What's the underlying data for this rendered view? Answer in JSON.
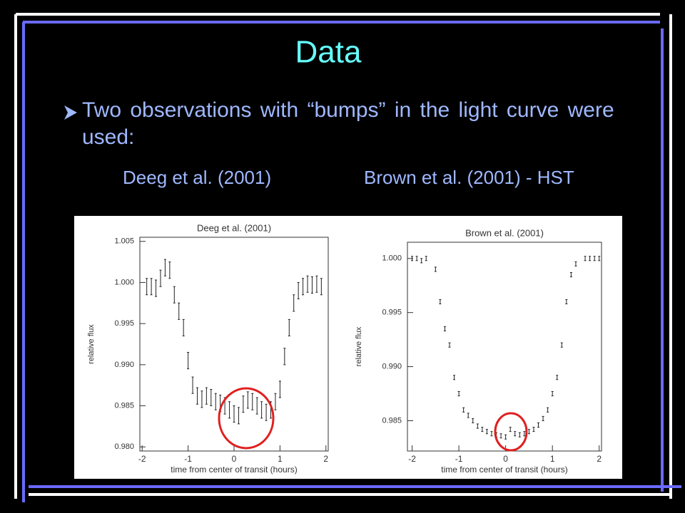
{
  "title": "Data",
  "bullet": "Two observations with “bumps” in the light curve were used:",
  "captions": [
    "Deeg et al. (2001)",
    "Brown et al. (2001) - HST"
  ],
  "chart_data": [
    {
      "type": "scatter",
      "title": "Deeg et al. (2001)",
      "x_label": "time from center of transit (hours)",
      "y_label": "relative flux",
      "xlim": [
        -2.05,
        2.05
      ],
      "ylim": [
        0.9795,
        1.0055
      ],
      "xticks": [
        -2,
        -1,
        0,
        1,
        2
      ],
      "yticks": [
        {
          "value": 0.98,
          "label": "0.980"
        },
        0.985,
        {
          "value": 0.99,
          "label": "0.990"
        },
        0.995,
        {
          "value": 1,
          "label": "1.000"
        },
        1.005
      ],
      "color": "#222222",
      "x": [
        -1.9,
        -1.8,
        -1.7,
        -1.6,
        -1.5,
        -1.4,
        -1.3,
        -1.2,
        -1.1,
        -1.0,
        -0.9,
        -0.8,
        -0.7,
        -0.6,
        -0.5,
        -0.4,
        -0.3,
        -0.2,
        -0.1,
        0.0,
        0.1,
        0.2,
        0.3,
        0.4,
        0.5,
        0.6,
        0.7,
        0.8,
        0.9,
        1.0,
        1.1,
        1.2,
        1.3,
        1.4,
        1.5,
        1.6,
        1.7,
        1.8,
        1.9
      ],
      "values": [
        0.9995,
        0.9995,
        0.9993,
        1.0005,
        1.0018,
        1.0015,
        0.9985,
        0.9965,
        0.9945,
        0.9905,
        0.9875,
        0.9862,
        0.9858,
        0.9862,
        0.986,
        0.9855,
        0.9853,
        0.985,
        0.9845,
        0.984,
        0.9838,
        0.9852,
        0.9857,
        0.9855,
        0.985,
        0.9845,
        0.9842,
        0.9845,
        0.9855,
        0.987,
        0.991,
        0.9945,
        0.9975,
        0.999,
        0.9995,
        0.9998,
        0.9997,
        0.9998,
        0.9995
      ],
      "errors": [
        0.001,
        0.001,
        0.001,
        0.001,
        0.001,
        0.001,
        0.001,
        0.001,
        0.001,
        0.001,
        0.001,
        0.001,
        0.001,
        0.001,
        0.001,
        0.001,
        0.001,
        0.001,
        0.001,
        0.001,
        0.001,
        0.001,
        0.001,
        0.001,
        0.001,
        0.001,
        0.001,
        0.001,
        0.001,
        0.001,
        0.001,
        0.001,
        0.001,
        0.001,
        0.001,
        0.001,
        0.001,
        0.001,
        0.001
      ]
    },
    {
      "type": "scatter",
      "title": "Brown et al. (2001)",
      "x_label": "time from center of transit (hours)",
      "y_label": "relative flux",
      "xlim": [
        -2.1,
        2.05
      ],
      "ylim": [
        0.9822,
        1.0015
      ],
      "xticks": [
        -2,
        -1,
        0,
        1,
        2
      ],
      "yticks": [
        0.985,
        {
          "value": 0.99,
          "label": "0.990"
        },
        0.995,
        {
          "value": 1,
          "label": "1.000"
        }
      ],
      "color": "#222222",
      "x": [
        -2.0,
        -1.9,
        -1.8,
        -1.7,
        -1.5,
        -1.4,
        -1.3,
        -1.2,
        -1.1,
        -1.0,
        -0.9,
        -0.8,
        -0.7,
        -0.6,
        -0.5,
        -0.4,
        -0.3,
        -0.2,
        -0.1,
        0.0,
        0.1,
        0.2,
        0.3,
        0.4,
        0.5,
        0.6,
        0.7,
        0.8,
        0.9,
        1.0,
        1.1,
        1.2,
        1.3,
        1.4,
        1.5,
        1.7,
        1.8,
        1.9,
        2.0
      ],
      "values": [
        1.0,
        1.0,
        0.9998,
        1.0,
        0.999,
        0.996,
        0.9935,
        0.992,
        0.989,
        0.9875,
        0.986,
        0.9855,
        0.985,
        0.9845,
        0.9842,
        0.984,
        0.9838,
        0.9837,
        0.9836,
        0.9835,
        0.9842,
        0.9838,
        0.9837,
        0.9838,
        0.984,
        0.9842,
        0.9846,
        0.9852,
        0.986,
        0.9875,
        0.989,
        0.992,
        0.996,
        0.9985,
        0.9995,
        1.0,
        1.0,
        1.0,
        1.0
      ],
      "errors": [
        0.0002,
        0.0002,
        0.0002,
        0.0002,
        0.0002,
        0.0002,
        0.0002,
        0.0002,
        0.0002,
        0.0002,
        0.0002,
        0.0002,
        0.0002,
        0.0002,
        0.0002,
        0.0002,
        0.0002,
        0.0002,
        0.0002,
        0.0002,
        0.0002,
        0.0002,
        0.0002,
        0.0002,
        0.0002,
        0.0002,
        0.0002,
        0.0002,
        0.0002,
        0.0002,
        0.0002,
        0.0002,
        0.0002,
        0.0002,
        0.0002,
        0.0002,
        0.0002,
        0.0002,
        0.0002
      ]
    }
  ]
}
